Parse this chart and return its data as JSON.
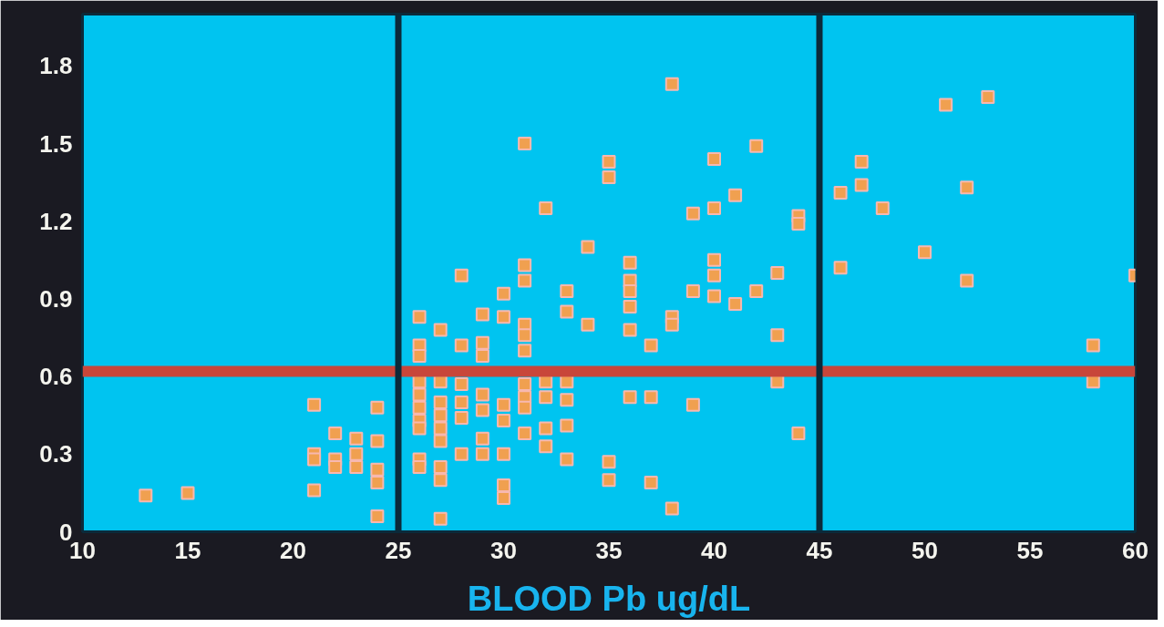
{
  "chart_data": {
    "type": "scatter",
    "xlabel": "BLOOD Pb ug/dL",
    "xlim": [
      10,
      60
    ],
    "ylim": [
      0,
      2
    ],
    "xticks": [
      10,
      15,
      20,
      25,
      30,
      35,
      40,
      45,
      50,
      55,
      60
    ],
    "yticks": [
      0,
      0.3,
      0.6,
      0.9,
      1.2,
      1.5,
      1.8
    ],
    "marker": "square",
    "grid": false,
    "ref_lines": [
      {
        "axis": "y",
        "value": 0.62,
        "color": "#c8463a"
      },
      {
        "axis": "x",
        "value": 25,
        "color": "#0b2a3a"
      },
      {
        "axis": "x",
        "value": 45,
        "color": "#0b2a3a"
      }
    ],
    "series": [
      {
        "color": "#f0a050",
        "x": [
          13,
          15,
          21,
          21,
          21,
          21,
          22,
          22,
          22,
          23,
          23,
          23,
          24,
          24,
          24,
          24,
          24,
          26,
          26,
          26,
          26,
          26,
          26,
          26,
          26,
          26,
          26,
          27,
          27,
          27,
          27,
          27,
          27,
          27,
          27,
          27,
          28,
          28,
          28,
          28,
          28,
          28,
          29,
          29,
          29,
          29,
          29,
          29,
          29,
          30,
          30,
          30,
          30,
          30,
          30,
          30,
          31,
          31,
          31,
          31,
          31,
          31,
          31,
          31,
          31,
          31,
          32,
          32,
          32,
          32,
          32,
          33,
          33,
          33,
          33,
          33,
          33,
          34,
          34,
          35,
          35,
          35,
          35,
          36,
          36,
          36,
          36,
          36,
          36,
          37,
          37,
          37,
          38,
          38,
          38,
          38,
          39,
          39,
          39,
          40,
          40,
          40,
          40,
          40,
          41,
          41,
          42,
          42,
          43,
          43,
          43,
          44,
          44,
          44,
          46,
          46,
          47,
          47,
          48,
          50,
          51,
          52,
          52,
          53,
          58,
          58,
          60
        ],
        "values": [
          0.14,
          0.15,
          0.49,
          0.3,
          0.28,
          0.16,
          0.38,
          0.28,
          0.25,
          0.36,
          0.3,
          0.25,
          0.48,
          0.35,
          0.24,
          0.19,
          0.06,
          0.83,
          0.72,
          0.68,
          0.58,
          0.53,
          0.48,
          0.43,
          0.4,
          0.28,
          0.25,
          0.78,
          0.58,
          0.5,
          0.45,
          0.4,
          0.35,
          0.25,
          0.2,
          0.05,
          0.99,
          0.72,
          0.57,
          0.5,
          0.44,
          0.3,
          0.84,
          0.73,
          0.68,
          0.53,
          0.47,
          0.36,
          0.3,
          0.92,
          0.83,
          0.49,
          0.43,
          0.3,
          0.18,
          0.13,
          1.5,
          1.03,
          0.97,
          0.8,
          0.76,
          0.7,
          0.57,
          0.52,
          0.48,
          0.38,
          1.25,
          0.58,
          0.52,
          0.4,
          0.33,
          0.93,
          0.85,
          0.58,
          0.51,
          0.41,
          0.28,
          1.1,
          0.8,
          1.43,
          1.37,
          0.27,
          0.2,
          1.04,
          0.97,
          0.93,
          0.87,
          0.78,
          0.52,
          0.72,
          0.19,
          0.52,
          1.73,
          0.83,
          0.8,
          0.09,
          1.23,
          0.93,
          0.49,
          1.44,
          1.25,
          1.05,
          0.99,
          0.91,
          1.3,
          0.88,
          1.49,
          0.93,
          1.0,
          0.76,
          0.58,
          1.22,
          1.19,
          0.38,
          1.31,
          1.02,
          1.43,
          1.34,
          1.25,
          1.08,
          1.65,
          1.33,
          0.97,
          1.68,
          0.72,
          0.58,
          0.99
        ]
      }
    ]
  }
}
